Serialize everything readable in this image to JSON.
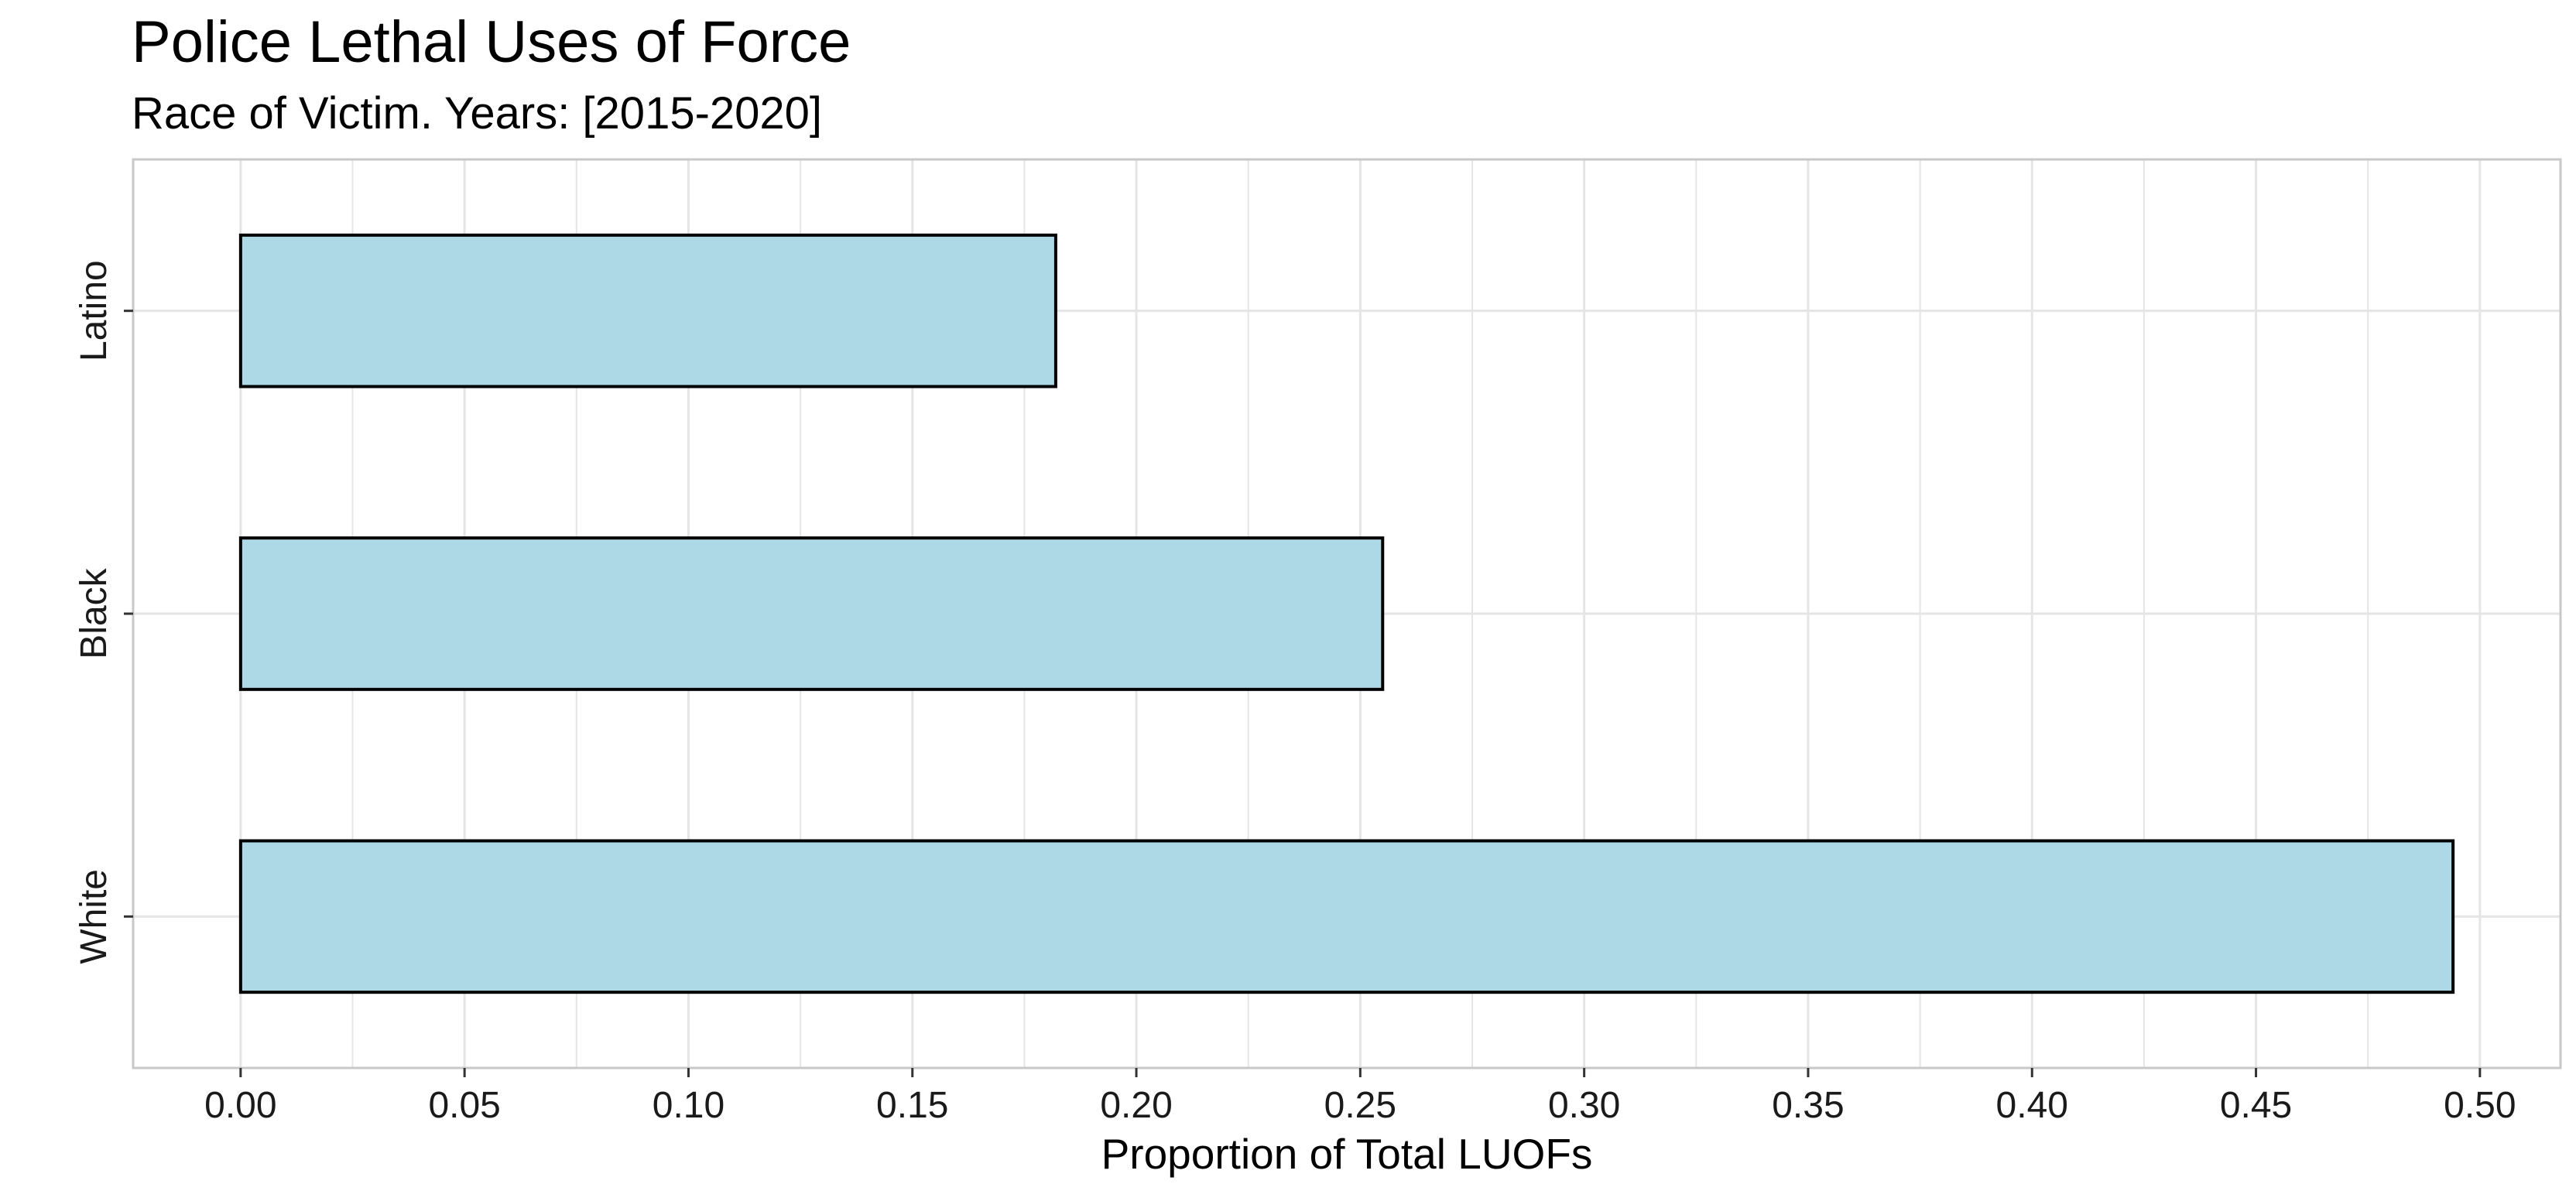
{
  "title": "Police Lethal Uses of Force",
  "subtitle": "Race of Victim. Years: [2015-2020]",
  "chart_data": {
    "type": "bar",
    "orientation": "horizontal",
    "title": "Police Lethal Uses of Force",
    "subtitle": "Race of Victim. Years: [2015-2020]",
    "categories": [
      "Latino",
      "Black",
      "White"
    ],
    "values": [
      0.182,
      0.255,
      0.494
    ],
    "xlabel": "Proportion of Total LUOFs",
    "ylabel": "",
    "xlim": [
      -0.024,
      0.518
    ],
    "x_ticks": [
      "0.00",
      "0.05",
      "0.10",
      "0.15",
      "0.20",
      "0.25",
      "0.30",
      "0.35",
      "0.40",
      "0.45",
      "0.50"
    ],
    "grid": true,
    "legend": "none",
    "colors": {
      "bar_fill": "#ADD8E6",
      "bar_stroke": "#000000",
      "grid": "#e5e5e5",
      "panel_border": "#c8c8c8"
    }
  }
}
